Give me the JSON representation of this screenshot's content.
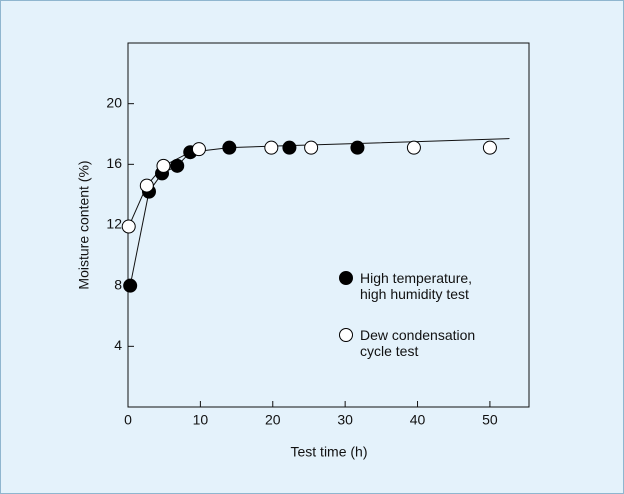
{
  "chart_data": {
    "type": "scatter",
    "xlabel": "Test time (h)",
    "ylabel": "Moisture content (%)",
    "xlim": [
      0,
      55.4
    ],
    "ylim": [
      0,
      24
    ],
    "xticks": [
      0,
      10,
      20,
      30,
      40,
      50
    ],
    "yticks": [
      4,
      8,
      12,
      16,
      20
    ],
    "series": [
      {
        "name": "High temperature, high humidity test",
        "color": "#000000",
        "filled": true,
        "x": [
          0.3,
          2.9,
          4.7,
          6.8,
          8.6,
          14.0,
          22.3,
          31.7
        ],
        "values": [
          8.0,
          14.2,
          15.4,
          15.9,
          16.8,
          17.1,
          17.1,
          17.1
        ]
      },
      {
        "name": "Dew condensation cycle test",
        "color": "#000000",
        "filled": false,
        "x": [
          0.1,
          2.6,
          4.9,
          9.8,
          19.8,
          25.3,
          39.5,
          50.0
        ],
        "values": [
          11.9,
          14.6,
          15.9,
          17.0,
          17.1,
          17.1,
          17.1,
          17.1
        ]
      }
    ],
    "fit_lines": [
      {
        "x": [
          0.3,
          2.9,
          4.7,
          6.8,
          8.6,
          14,
          20,
          30,
          40,
          52.7
        ],
        "values": [
          8.0,
          14.2,
          15.4,
          15.9,
          16.8,
          17.1,
          17.2,
          17.35,
          17.5,
          17.7
        ]
      },
      {
        "x": [
          0.1,
          2.6,
          4.9,
          8.6
        ],
        "values": [
          11.9,
          14.6,
          15.9,
          16.8
        ]
      }
    ]
  }
}
